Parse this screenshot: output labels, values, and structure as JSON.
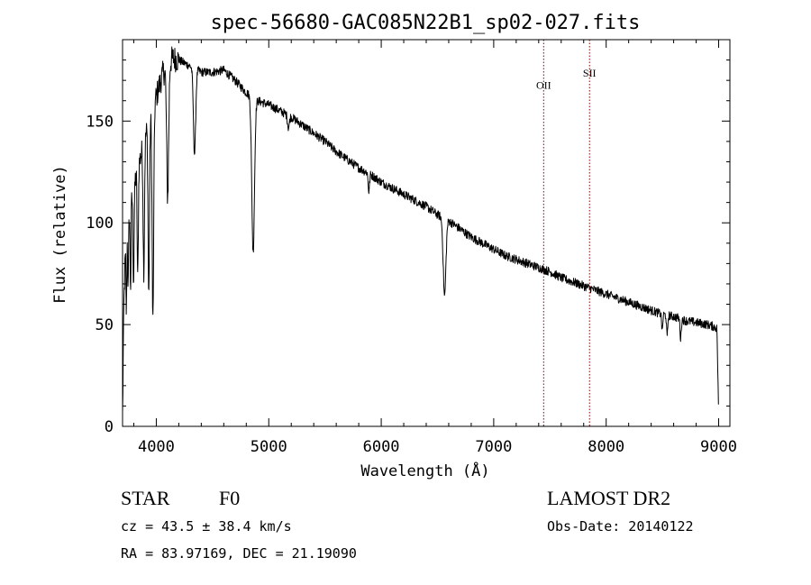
{
  "chart_data": {
    "type": "line",
    "title": "spec-56680-GAC085N22B1_sp02-027.fits",
    "xlabel": "Wavelength (Å)",
    "ylabel": "Flux (relative)",
    "xlim": [
      3700,
      9100
    ],
    "ylim": [
      0,
      190
    ],
    "x_ticks": [
      4000,
      5000,
      6000,
      7000,
      8000,
      9000
    ],
    "x_tick_labels": [
      "4000",
      "5000",
      "6000",
      "7000",
      "8000",
      "9000"
    ],
    "y_ticks": [
      0,
      50,
      100,
      150
    ],
    "y_tick_labels": [
      "0",
      "50",
      "100",
      "150"
    ],
    "x_minor_step": 200,
    "y_minor_step": 10,
    "grid": false,
    "series": [
      {
        "color": "#000000",
        "continuum": [
          [
            3700,
            5
          ],
          [
            3712,
            60
          ],
          [
            3730,
            95
          ],
          [
            3760,
            105
          ],
          [
            3800,
            118
          ],
          [
            3850,
            130
          ],
          [
            3900,
            142
          ],
          [
            3950,
            152
          ],
          [
            4000,
            162
          ],
          [
            4050,
            172
          ],
          [
            4100,
            178
          ],
          [
            4150,
            181
          ],
          [
            4200,
            180
          ],
          [
            4300,
            177
          ],
          [
            4400,
            174
          ],
          [
            4500,
            174
          ],
          [
            4600,
            175
          ],
          [
            4700,
            170
          ],
          [
            4800,
            164
          ],
          [
            4900,
            160
          ],
          [
            5000,
            158
          ],
          [
            5100,
            155
          ],
          [
            5200,
            152
          ],
          [
            5300,
            148
          ],
          [
            5400,
            144
          ],
          [
            5500,
            140
          ],
          [
            5600,
            135
          ],
          [
            5700,
            131
          ],
          [
            5800,
            127
          ],
          [
            5900,
            124
          ],
          [
            6000,
            120
          ],
          [
            6100,
            117
          ],
          [
            6200,
            114
          ],
          [
            6300,
            111
          ],
          [
            6400,
            108
          ],
          [
            6500,
            104
          ],
          [
            6600,
            101
          ],
          [
            6700,
            97
          ],
          [
            6800,
            93
          ],
          [
            6900,
            90
          ],
          [
            7000,
            87
          ],
          [
            7100,
            84
          ],
          [
            7200,
            82
          ],
          [
            7300,
            80
          ],
          [
            7400,
            78
          ],
          [
            7500,
            76
          ],
          [
            7600,
            73
          ],
          [
            7700,
            71
          ],
          [
            7800,
            69
          ],
          [
            7900,
            67
          ],
          [
            8000,
            65
          ],
          [
            8100,
            63
          ],
          [
            8200,
            61
          ],
          [
            8300,
            59
          ],
          [
            8400,
            57
          ],
          [
            8500,
            55
          ],
          [
            8600,
            54
          ],
          [
            8700,
            52
          ],
          [
            8800,
            51
          ],
          [
            8900,
            50
          ],
          [
            8960,
            49
          ],
          [
            8985,
            48
          ],
          [
            8995,
            20
          ],
          [
            9000,
            2
          ]
        ],
        "absorption_lines": [
          {
            "x": 3734,
            "depth": 40,
            "width": 4
          },
          {
            "x": 3750,
            "depth": 32,
            "width": 4
          },
          {
            "x": 3771,
            "depth": 40,
            "width": 4
          },
          {
            "x": 3798,
            "depth": 45,
            "width": 5
          },
          {
            "x": 3835,
            "depth": 55,
            "width": 5
          },
          {
            "x": 3889,
            "depth": 62,
            "width": 6
          },
          {
            "x": 3933,
            "depth": 85,
            "width": 6
          },
          {
            "x": 3970,
            "depth": 105,
            "width": 7
          },
          {
            "x": 4101,
            "depth": 65,
            "width": 9
          },
          {
            "x": 4340,
            "depth": 42,
            "width": 10
          },
          {
            "x": 4861,
            "depth": 76,
            "width": 12
          },
          {
            "x": 5175,
            "depth": 6,
            "width": 8
          },
          {
            "x": 5890,
            "depth": 9,
            "width": 6
          },
          {
            "x": 6563,
            "depth": 38,
            "width": 12
          },
          {
            "x": 8498,
            "depth": 8,
            "width": 5
          },
          {
            "x": 8542,
            "depth": 11,
            "width": 5
          },
          {
            "x": 8662,
            "depth": 10,
            "width": 5
          }
        ],
        "noise_amplitude": 2.2,
        "sample_step": 3
      }
    ],
    "line_markers": [
      {
        "label": "OII",
        "x": 7444,
        "label_y": 168
      },
      {
        "label": "SII",
        "x": 7852,
        "label_y": 174
      }
    ],
    "marker_color": "#8b0000"
  },
  "info": {
    "object_class": "STAR",
    "subclass": "F0",
    "survey": "LAMOST DR2",
    "redshift_text": "cz = 43.5 ± 38.4 km/s",
    "obs_date_text": "Obs-Date: 20140122",
    "coords_text": "RA =  83.97169, DEC =  21.19090"
  }
}
